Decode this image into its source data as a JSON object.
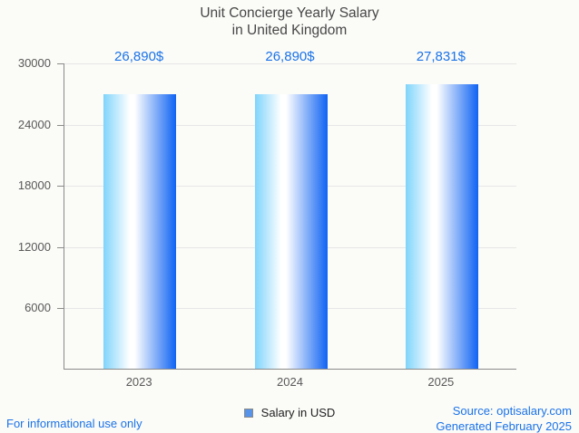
{
  "title": {
    "line1": "Unit Concierge Yearly Salary",
    "line2": "in United Kingdom"
  },
  "chart_data": {
    "type": "bar",
    "title": "Unit Concierge Yearly Salary in United Kingdom",
    "categories": [
      "2023",
      "2024",
      "2025"
    ],
    "series": [
      {
        "name": "Salary in USD",
        "values": [
          26890,
          26890,
          27831
        ]
      }
    ],
    "value_labels": [
      "26,890$",
      "26,890$",
      "27,831$"
    ],
    "xlabel": "",
    "ylabel": "",
    "ylim": [
      0,
      30000
    ],
    "yticks": [
      6000,
      12000,
      18000,
      24000,
      30000
    ],
    "grid": true,
    "legend_position": "bottom-center"
  },
  "legend": {
    "label": "Salary in USD"
  },
  "footer": {
    "disclaimer": "For informational use only",
    "source": "Source: optisalary.com",
    "generated": "Generated February 2025"
  },
  "colors": {
    "accent_blue": "#1a73e8",
    "title_text": "#474747",
    "tick_text": "#585858",
    "grid_line": "#e7e7e7",
    "axis_line": "#8a8a8a",
    "background": "#fbfbf8",
    "bar_gradient_left": "#7fd4fb",
    "bar_gradient_mid": "#ffffff",
    "bar_gradient_right": "#0f63f3",
    "legend_swatch": "#5793e8"
  }
}
